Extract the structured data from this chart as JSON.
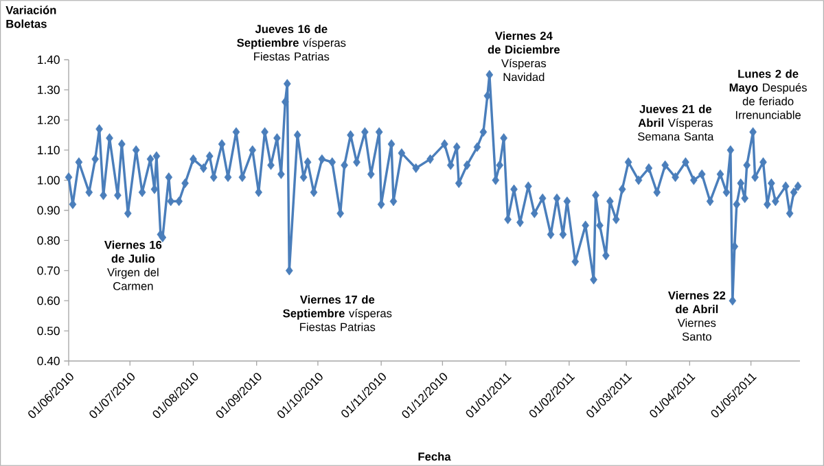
{
  "chart_data": {
    "type": "line",
    "xlabel": "Fecha",
    "ylabel": "Variación Boletas",
    "x": [
      "2010-06-01",
      "2010-06-03",
      "2010-06-06",
      "2010-06-11",
      "2010-06-14",
      "2010-06-16",
      "2010-06-18",
      "2010-06-21",
      "2010-06-25",
      "2010-06-27",
      "2010-06-30",
      "2010-07-04",
      "2010-07-07",
      "2010-07-11",
      "2010-07-13",
      "2010-07-14",
      "2010-07-16",
      "2010-07-17",
      "2010-07-20",
      "2010-07-21",
      "2010-07-25",
      "2010-07-28",
      "2010-08-01",
      "2010-08-06",
      "2010-08-09",
      "2010-08-11",
      "2010-08-15",
      "2010-08-18",
      "2010-08-22",
      "2010-08-25",
      "2010-08-30",
      "2010-09-02",
      "2010-09-05",
      "2010-09-08",
      "2010-09-11",
      "2010-09-13",
      "2010-09-15",
      "2010-09-16",
      "2010-09-17",
      "2010-09-21",
      "2010-09-24",
      "2010-09-26",
      "2010-09-29",
      "2010-10-03",
      "2010-10-08",
      "2010-10-12",
      "2010-10-14",
      "2010-10-17",
      "2010-10-20",
      "2010-10-24",
      "2010-10-27",
      "2010-10-31",
      "2010-11-01",
      "2010-11-06",
      "2010-11-07",
      "2010-11-11",
      "2010-11-18",
      "2010-11-25",
      "2010-12-02",
      "2010-12-05",
      "2010-12-08",
      "2010-12-09",
      "2010-12-13",
      "2010-12-18",
      "2010-12-21",
      "2010-12-23",
      "2010-12-24",
      "2010-12-27",
      "2010-12-29",
      "2010-12-31",
      "2011-01-02",
      "2011-01-05",
      "2011-01-08",
      "2011-01-12",
      "2011-01-15",
      "2011-01-19",
      "2011-01-23",
      "2011-01-26",
      "2011-01-29",
      "2011-01-31",
      "2011-02-04",
      "2011-02-09",
      "2011-02-13",
      "2011-02-14",
      "2011-02-16",
      "2011-02-19",
      "2011-02-21",
      "2011-02-24",
      "2011-02-27",
      "2011-03-02",
      "2011-03-07",
      "2011-03-12",
      "2011-03-16",
      "2011-03-20",
      "2011-03-25",
      "2011-03-30",
      "2011-04-03",
      "2011-04-07",
      "2011-04-11",
      "2011-04-16",
      "2011-04-19",
      "2011-04-21",
      "2011-04-22",
      "2011-04-23",
      "2011-04-24",
      "2011-04-26",
      "2011-04-28",
      "2011-04-29",
      "2011-05-02",
      "2011-05-03",
      "2011-05-07",
      "2011-05-09",
      "2011-05-11",
      "2011-05-13",
      "2011-05-18",
      "2011-05-20",
      "2011-05-22",
      "2011-05-24"
    ],
    "values": [
      1.01,
      0.92,
      1.06,
      0.96,
      1.07,
      1.17,
      0.95,
      1.14,
      0.95,
      1.12,
      0.89,
      1.1,
      0.96,
      1.07,
      0.97,
      1.08,
      0.82,
      0.81,
      1.01,
      0.93,
      0.93,
      0.99,
      1.07,
      1.04,
      1.08,
      1.01,
      1.12,
      1.01,
      1.16,
      1.01,
      1.1,
      0.96,
      1.16,
      1.05,
      1.14,
      1.02,
      1.26,
      1.32,
      0.7,
      1.15,
      1.01,
      1.06,
      0.96,
      1.07,
      1.06,
      0.89,
      1.05,
      1.15,
      1.06,
      1.16,
      1.02,
      1.16,
      0.92,
      1.12,
      0.93,
      1.09,
      1.04,
      1.07,
      1.12,
      1.05,
      1.11,
      0.99,
      1.05,
      1.11,
      1.16,
      1.28,
      1.35,
      1.0,
      1.05,
      1.14,
      0.87,
      0.97,
      0.86,
      0.98,
      0.89,
      0.94,
      0.82,
      0.94,
      0.82,
      0.93,
      0.73,
      0.85,
      0.67,
      0.95,
      0.85,
      0.75,
      0.93,
      0.87,
      0.97,
      1.06,
      1.0,
      1.04,
      0.96,
      1.05,
      1.01,
      1.06,
      1.0,
      1.02,
      0.93,
      1.02,
      0.96,
      1.1,
      0.6,
      0.78,
      0.92,
      0.99,
      0.94,
      1.05,
      1.16,
      1.01,
      1.06,
      0.92,
      0.99,
      0.93,
      0.98,
      0.89,
      0.96,
      0.98
    ],
    "color": "#4a7ebb",
    "marker": "diamond",
    "line_style": "solid",
    "xlim": [
      "2010-06-01",
      "2011-05-25"
    ],
    "xticks": [
      {
        "value": "2010-06-01",
        "label": "01/06/2010"
      },
      {
        "value": "2010-07-01",
        "label": "01/07/2010"
      },
      {
        "value": "2010-08-01",
        "label": "01/08/2010"
      },
      {
        "value": "2010-09-01",
        "label": "01/09/2010"
      },
      {
        "value": "2010-10-01",
        "label": "01/10/2010"
      },
      {
        "value": "2010-11-01",
        "label": "01/11/2010"
      },
      {
        "value": "2010-12-01",
        "label": "01/12/2010"
      },
      {
        "value": "2011-01-01",
        "label": "01/01/2011"
      },
      {
        "value": "2011-02-01",
        "label": "01/02/2011"
      },
      {
        "value": "2011-03-01",
        "label": "01/03/2011"
      },
      {
        "value": "2011-04-01",
        "label": "01/04/2011"
      },
      {
        "value": "2011-05-01",
        "label": "01/05/2011"
      }
    ],
    "ylim": [
      0.4,
      1.4
    ],
    "yticks": [
      {
        "value": 0.4,
        "label": "0.40"
      },
      {
        "value": 0.5,
        "label": "0.50"
      },
      {
        "value": 0.6,
        "label": "0.60"
      },
      {
        "value": 0.7,
        "label": "0.70"
      },
      {
        "value": 0.8,
        "label": "0.80"
      },
      {
        "value": 0.9,
        "label": "0.90"
      },
      {
        "value": 1.0,
        "label": "1.00"
      },
      {
        "value": 1.1,
        "label": "1.10"
      },
      {
        "value": 1.2,
        "label": "1.20"
      },
      {
        "value": 1.3,
        "label": "1.30"
      },
      {
        "value": 1.4,
        "label": "1.40"
      }
    ],
    "annotations": [
      {
        "text": "**Jueves 16 de Septiembre** vísperas Fiestas Patrias",
        "x": "2010-09-16",
        "y": 1.32
      },
      {
        "text": "**Viernes 17 de Septiembre** vísperas Fiestas Patrias",
        "x": "2010-09-17",
        "y": 0.7
      },
      {
        "text": "**Viernes 16 de Julio** Virgen del Carmen",
        "x": "2010-07-16",
        "y": 0.82
      },
      {
        "text": "**Viernes 24 de Diciembre** Vísperas Navidad",
        "x": "2010-12-24",
        "y": 1.35
      },
      {
        "text": "**Jueves 21 de Abril** Vísperas Semana Santa",
        "x": "2011-04-21",
        "y": 1.1
      },
      {
        "text": "**Viernes 22 de Abril** Viernes Santo",
        "x": "2011-04-22",
        "y": 0.6
      },
      {
        "text": "**Lunes 2 de Mayo** Después de feriado Irrenunciable",
        "x": "2011-05-02",
        "y": 1.16
      }
    ]
  }
}
